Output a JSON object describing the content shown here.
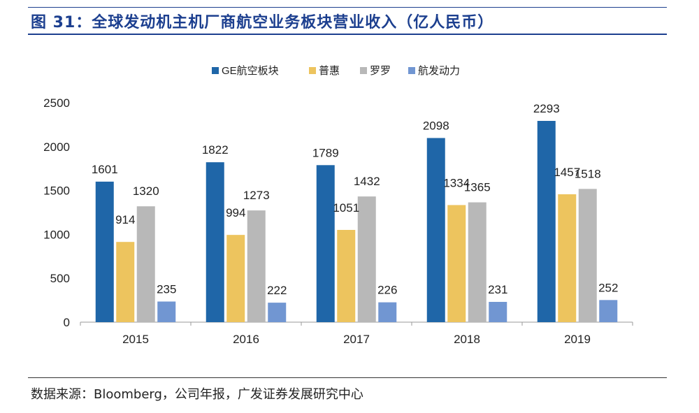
{
  "header": {
    "title": "图 31：全球发动机主机厂商航空业务板块营业收入（亿人民币）"
  },
  "source_note": "数据来源：Bloomberg，公司年报，广发证券发展研究中心",
  "chart_data": {
    "type": "bar",
    "title": "",
    "xlabel": "",
    "ylabel": "",
    "categories": [
      "2015",
      "2016",
      "2017",
      "2018",
      "2019"
    ],
    "ylim": [
      0,
      2500
    ],
    "yticks": [
      0,
      500,
      1000,
      1500,
      2000,
      2500
    ],
    "grid": false,
    "legend_position": "top-center",
    "series": [
      {
        "name": "GE航空板块",
        "color": "#1f66a8",
        "values": [
          1601,
          1822,
          1789,
          2098,
          2293
        ]
      },
      {
        "name": "普惠",
        "color": "#edc45e",
        "values": [
          914,
          994,
          1051,
          1334,
          1457
        ]
      },
      {
        "name": "罗罗",
        "color": "#b8b8b8",
        "values": [
          1320,
          1273,
          1432,
          1365,
          1518
        ]
      },
      {
        "name": "航发动力",
        "color": "#7196d2",
        "values": [
          235,
          222,
          226,
          231,
          252
        ]
      }
    ]
  }
}
